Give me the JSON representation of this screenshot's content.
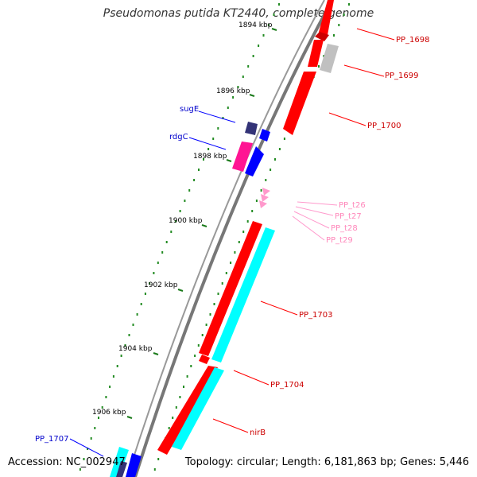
{
  "title": "Pseudomonas putida KT2440, complete genome",
  "footer": {
    "accession": "Accession: NC_002947",
    "summary": "Topology: circular; Length: 6,181,863 bp; Genes: 5,446"
  },
  "colors": {
    "forward_cds": "#ff0000",
    "reverse_cds": "#ff0000",
    "pseudo": "#c0c0c0",
    "cyan_feature": "#00ffff",
    "blue_feature": "#0000ff",
    "navy_feature": "#333377",
    "magenta_feature": "#ff1493",
    "trna": "#ff99cc",
    "tick_dot": "#228b22",
    "backbone": "#777777"
  },
  "scale_labels": [
    {
      "id": "1894",
      "text": "1894 kbp"
    },
    {
      "id": "1896",
      "text": "1896 kbp"
    },
    {
      "id": "1898",
      "text": "1898 kbp"
    },
    {
      "id": "1900",
      "text": "1900 kbp"
    },
    {
      "id": "1902",
      "text": "1902 kbp"
    },
    {
      "id": "1904",
      "text": "1904 kbp"
    },
    {
      "id": "1906",
      "text": "1906 kbp"
    }
  ],
  "gene_labels": [
    {
      "id": "pp1698",
      "text": "PP_1698",
      "color": "#cc0000"
    },
    {
      "id": "pp1699",
      "text": "PP_1699",
      "color": "#cc0000"
    },
    {
      "id": "pp1700",
      "text": "PP_1700",
      "color": "#cc0000"
    },
    {
      "id": "sugE",
      "text": "sugE",
      "color": "#0000cc"
    },
    {
      "id": "rdgC",
      "text": "rdgC",
      "color": "#0000cc"
    },
    {
      "id": "ppt26",
      "text": "PP_t26",
      "color": "#ff88bb"
    },
    {
      "id": "ppt27",
      "text": "PP_t27",
      "color": "#ff88bb"
    },
    {
      "id": "ppt28",
      "text": "PP_t28",
      "color": "#ff88bb"
    },
    {
      "id": "ppt29",
      "text": "PP_t29",
      "color": "#ff88bb"
    },
    {
      "id": "pp1703",
      "text": "PP_1703",
      "color": "#cc0000"
    },
    {
      "id": "pp1704",
      "text": "PP_1704",
      "color": "#cc0000"
    },
    {
      "id": "nirB",
      "text": "nirB",
      "color": "#cc0000"
    },
    {
      "id": "pp1707",
      "text": "PP_1707",
      "color": "#0000cc"
    }
  ]
}
